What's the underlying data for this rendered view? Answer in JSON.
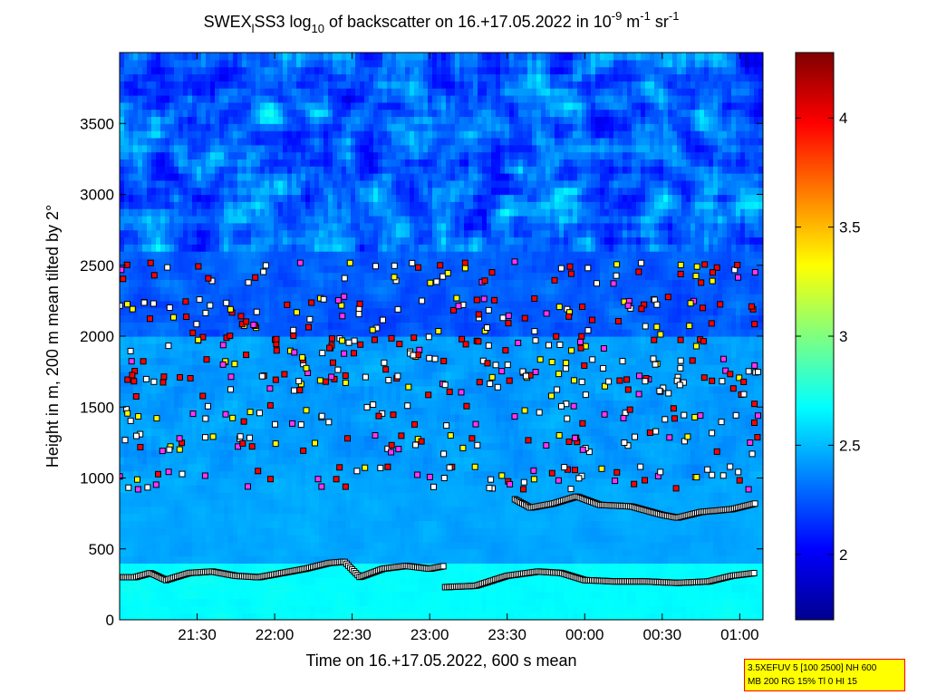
{
  "chart_data": {
    "type": "heatmap",
    "title": {
      "prefix": "SWEX",
      "sub1": "l",
      "part2": "SS3 log",
      "sub2": "10",
      "part3": " of backscatter on 16.+17.05.2022 in 10",
      "sup1": "-9",
      "part4": " m",
      "sup2": "-1",
      "part5": " sr",
      "sup3": "-1"
    },
    "xlabel": "Time on 16.+17.05.2022, 600 s mean",
    "ylabel": "Height in m, 200 m mean tilted by 2°",
    "x_range_hours": [
      21.0,
      25.15
    ],
    "y_range_m": [
      0,
      4000
    ],
    "x_tick_hours": [
      21.5,
      22.0,
      22.5,
      23.0,
      23.5,
      24.0,
      24.5,
      25.0
    ],
    "x_tick_labels": [
      "21:30",
      "22:00",
      "22:30",
      "23:00",
      "23:30",
      "00:00",
      "00:30",
      "01:00"
    ],
    "y_ticks": [
      0,
      500,
      1000,
      1500,
      2000,
      2500,
      3000,
      3500
    ],
    "y_tick_labels": [
      "0",
      "500",
      "1000",
      "1500",
      "2000",
      "2500",
      "3000",
      "3500"
    ],
    "colorbar": {
      "range": [
        1.7,
        4.3
      ],
      "ticks": [
        2,
        2.5,
        3,
        3.5,
        4
      ],
      "tick_labels": [
        "2",
        "2.5",
        "3",
        "3.5",
        "4"
      ],
      "colormap": "jet"
    },
    "layers": [
      {
        "name": "surface layer top",
        "points": [
          [
            21.0,
            300
          ],
          [
            21.1,
            300
          ],
          [
            21.2,
            330
          ],
          [
            21.3,
            280
          ],
          [
            21.45,
            330
          ],
          [
            21.6,
            340
          ],
          [
            21.75,
            310
          ],
          [
            21.9,
            300
          ],
          [
            22.05,
            330
          ],
          [
            22.2,
            360
          ],
          [
            22.35,
            400
          ],
          [
            22.45,
            410
          ],
          [
            22.55,
            300
          ],
          [
            22.7,
            360
          ],
          [
            22.85,
            380
          ],
          [
            23.0,
            360
          ],
          [
            23.1,
            380
          ],
          [
            23.1,
            230
          ],
          [
            23.3,
            240
          ],
          [
            23.5,
            310
          ],
          [
            23.7,
            340
          ],
          [
            23.85,
            330
          ],
          [
            24.0,
            280
          ],
          [
            24.2,
            270
          ],
          [
            24.4,
            270
          ],
          [
            24.6,
            260
          ],
          [
            24.8,
            270
          ],
          [
            24.95,
            310
          ],
          [
            25.1,
            330
          ]
        ]
      },
      {
        "name": "lower layer",
        "points": [
          [
            23.55,
            850
          ],
          [
            23.65,
            790
          ],
          [
            23.8,
            820
          ],
          [
            23.95,
            870
          ],
          [
            24.1,
            810
          ],
          [
            24.3,
            800
          ],
          [
            24.5,
            740
          ],
          [
            24.6,
            720
          ],
          [
            24.75,
            760
          ],
          [
            24.95,
            780
          ],
          [
            25.1,
            820
          ]
        ]
      }
    ],
    "marker_colors": {
      "white": "#ffffff",
      "yellow": "#ffff00",
      "red": "#ff0000",
      "magenta": "#ff33ff",
      "edge": "#000000"
    }
  },
  "info_box": {
    "line1": "3.5XEFUV 5 [100 2500] NH 600",
    "line2": "MB 200 RG 15% Tl 0 HI 15"
  }
}
